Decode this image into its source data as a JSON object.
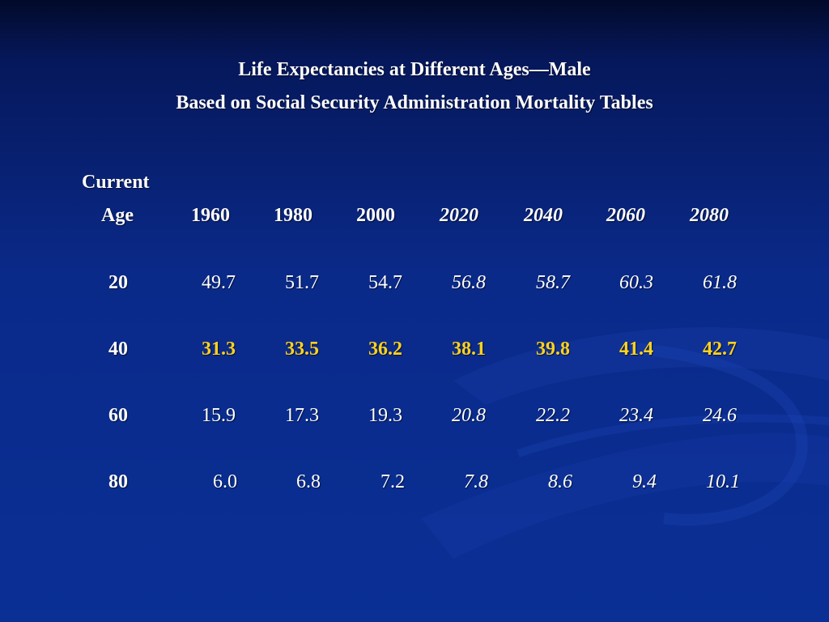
{
  "slide": {
    "title_line1": "Life Expectancies at Different Ages—Male",
    "title_line2": "Based on Social Security Administration Mortality Tables"
  },
  "table": {
    "age_header_line1": "Current",
    "age_header_line2": "Age",
    "years": [
      "1960",
      "1980",
      "2000",
      "2020",
      "2040",
      "2060",
      "2080"
    ],
    "rows": [
      {
        "age": "20",
        "values": [
          "49.7",
          "51.7",
          "54.7",
          "56.8",
          "58.7",
          "60.3",
          "61.8"
        ]
      },
      {
        "age": "40",
        "values": [
          "31.3",
          "33.5",
          "36.2",
          "38.1",
          "39.8",
          "41.4",
          "42.7"
        ]
      },
      {
        "age": "60",
        "values": [
          "15.9",
          "17.3",
          "19.3",
          "20.8",
          "22.2",
          "23.4",
          "24.6"
        ]
      },
      {
        "age": "80",
        "values": [
          "6.0",
          "6.8",
          "7.2",
          "7.8",
          "8.6",
          "9.4",
          "10.1"
        ]
      }
    ]
  },
  "colors": {
    "highlight": "#ffd21e",
    "text": "#ffffff",
    "background": "#0a2a8a"
  }
}
